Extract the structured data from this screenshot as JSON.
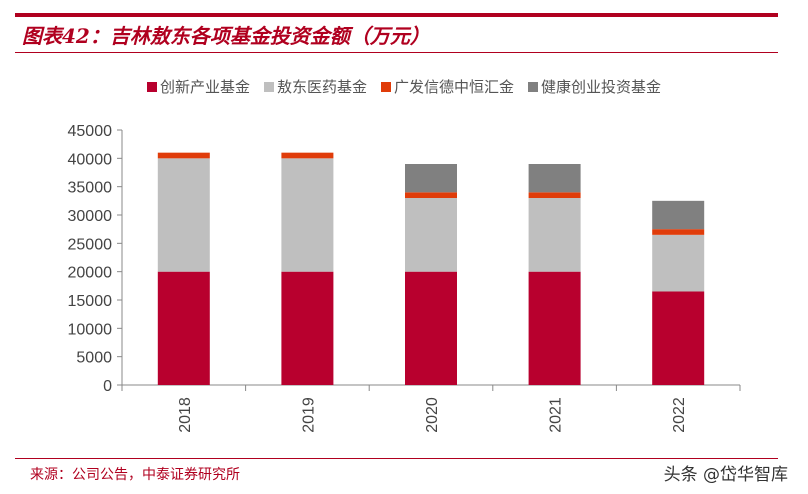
{
  "header": {
    "title": "图表42：吉林敖东各项基金投资金额（万元）"
  },
  "footer": {
    "source": "来源：公司公告，中泰证券研究所",
    "watermark": "头条 @岱华智库"
  },
  "chart_data": {
    "type": "bar",
    "stacked": true,
    "categories": [
      "2018",
      "2019",
      "2020",
      "2021",
      "2022"
    ],
    "series": [
      {
        "name": "创新产业基金",
        "color": "#b8002e",
        "values": [
          20000,
          20000,
          20000,
          20000,
          16500
        ]
      },
      {
        "name": "敖东医药基金",
        "color": "#bfbfbf",
        "values": [
          20000,
          20000,
          13000,
          13000,
          10000
        ]
      },
      {
        "name": "广发信德中恒汇金",
        "color": "#e03c0a",
        "values": [
          1000,
          1000,
          1000,
          1000,
          1000
        ]
      },
      {
        "name": "健康创业投资基金",
        "color": "#808080",
        "values": [
          0,
          0,
          5000,
          5000,
          5000
        ]
      }
    ],
    "ylim": [
      0,
      45000
    ],
    "yticks": [
      "0",
      "5000",
      "10000",
      "15000",
      "20000",
      "25000",
      "30000",
      "35000",
      "40000",
      "45000"
    ],
    "grid": false,
    "legend_position": "top"
  }
}
